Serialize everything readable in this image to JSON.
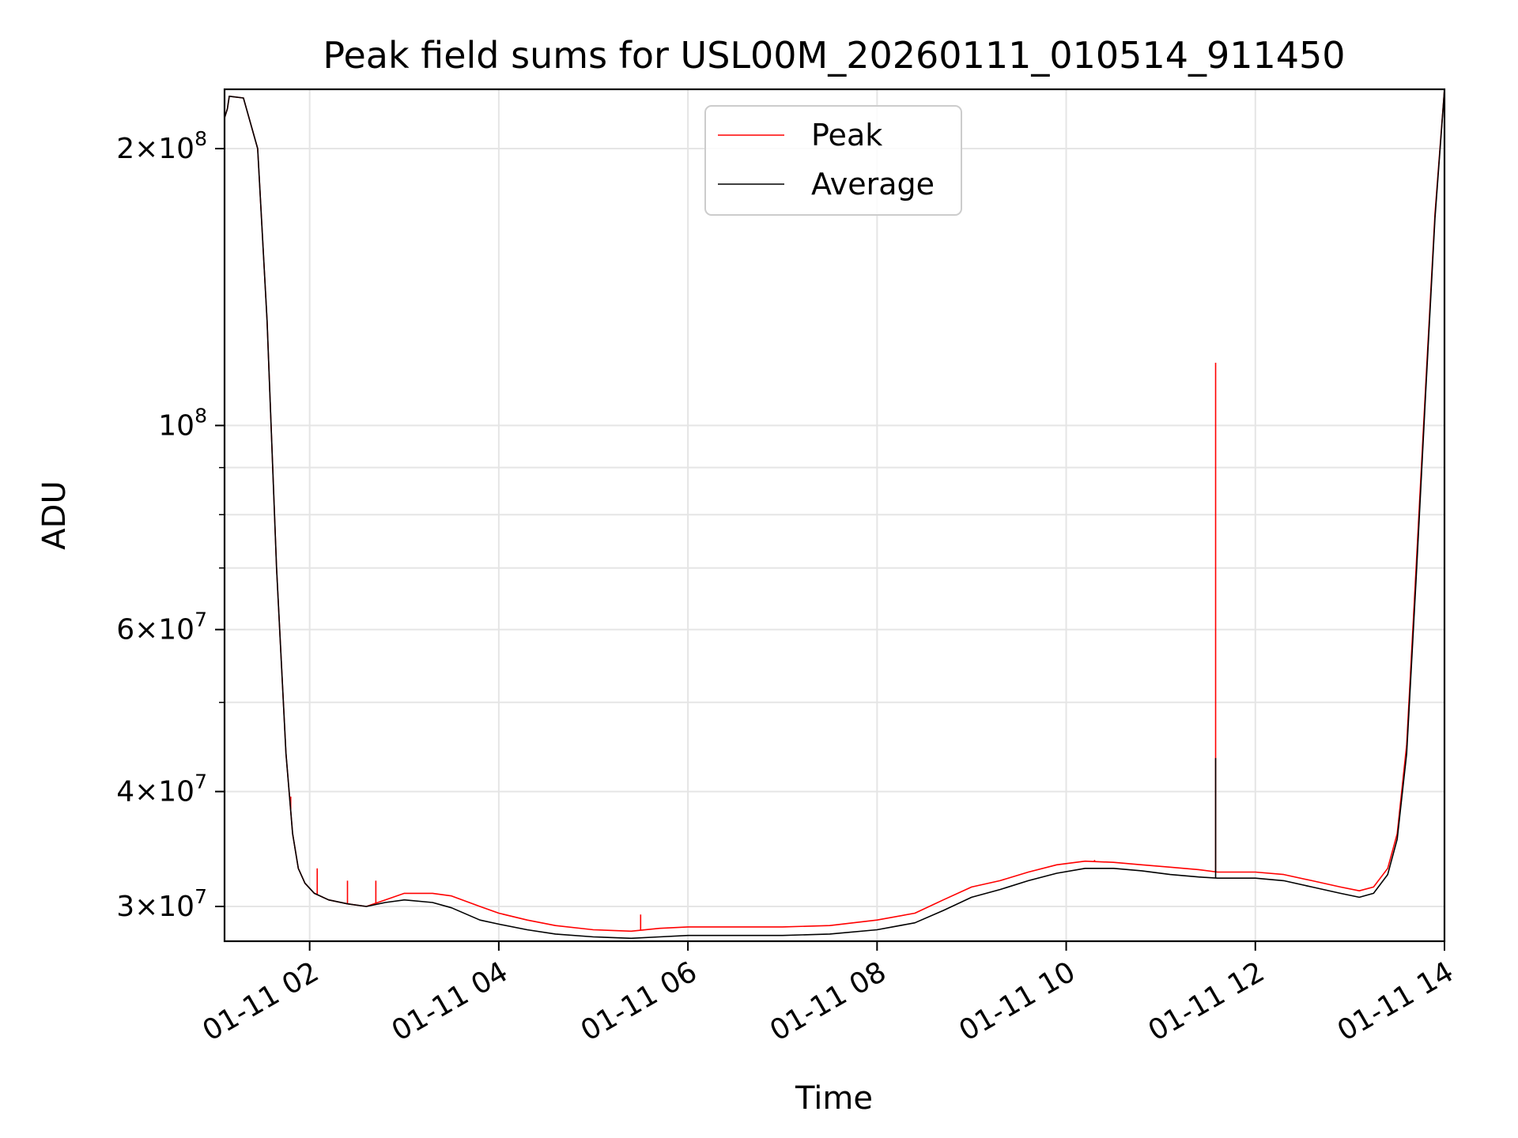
{
  "chart_data": {
    "type": "line",
    "title": "Peak field sums for USL00M_20260111_010514_911450",
    "xlabel": "Time",
    "ylabel": "ADU",
    "yscale": "log",
    "grid": true,
    "legend_position": "upper-center",
    "xlim_hours": [
      1.1,
      14.0
    ],
    "ylim": [
      27500000,
      232000000
    ],
    "x_ticks": [
      {
        "value": 2,
        "label": "01-11 02"
      },
      {
        "value": 4,
        "label": "01-11 04"
      },
      {
        "value": 6,
        "label": "01-11 06"
      },
      {
        "value": 8,
        "label": "01-11 08"
      },
      {
        "value": 10,
        "label": "01-11 10"
      },
      {
        "value": 12,
        "label": "01-11 12"
      },
      {
        "value": 14,
        "label": "01-11 14"
      }
    ],
    "y_ticks": [
      {
        "value": 30000000,
        "mant": "3",
        "exp": "7"
      },
      {
        "value": 40000000,
        "mant": "4",
        "exp": "7"
      },
      {
        "value": 60000000,
        "mant": "6",
        "exp": "7"
      },
      {
        "value": 100000000,
        "mant": "",
        "exp": "8"
      },
      {
        "value": 200000000,
        "mant": "2",
        "exp": "8"
      }
    ],
    "y_minor_ticks": [
      50000000,
      70000000,
      80000000,
      90000000
    ],
    "series": [
      {
        "name": "Peak",
        "color": "#ff0000",
        "x": [
          1.1,
          1.13,
          1.15,
          1.3,
          1.45,
          1.55,
          1.65,
          1.75,
          1.82,
          1.88,
          1.95,
          2.05,
          2.2,
          2.4,
          2.6,
          2.8,
          3.0,
          3.3,
          3.5,
          3.8,
          4.0,
          4.3,
          4.6,
          5.0,
          5.4,
          5.7,
          6.0,
          6.5,
          7.0,
          7.5,
          8.0,
          8.4,
          8.7,
          9.0,
          9.3,
          9.6,
          9.9,
          10.2,
          10.5,
          10.8,
          11.1,
          11.4,
          11.6,
          11.8,
          12.0,
          12.3,
          12.6,
          12.9,
          13.1,
          13.25,
          13.4,
          13.5,
          13.6,
          13.7,
          13.8,
          13.9,
          14.0
        ],
        "values": [
          216000000,
          221000000,
          228000000,
          227000000,
          200000000,
          130000000,
          70000000,
          44000000,
          36000000,
          33000000,
          31800000,
          31000000,
          30500000,
          30200000,
          30000000,
          30500000,
          31000000,
          31000000,
          30800000,
          30000000,
          29500000,
          29000000,
          28600000,
          28300000,
          28200000,
          28400000,
          28500000,
          28500000,
          28500000,
          28600000,
          29000000,
          29500000,
          30500000,
          31500000,
          32000000,
          32700000,
          33300000,
          33600000,
          33500000,
          33300000,
          33100000,
          32900000,
          32700000,
          32700000,
          32700000,
          32500000,
          32000000,
          31500000,
          31200000,
          31500000,
          33000000,
          36000000,
          45000000,
          70000000,
          110000000,
          170000000,
          232000000
        ],
        "spikes": [
          {
            "x": 11.58,
            "value": 117000000
          },
          {
            "x": 1.8,
            "value": 39500000
          },
          {
            "x": 2.08,
            "value": 33000000
          },
          {
            "x": 2.4,
            "value": 32000000
          },
          {
            "x": 2.7,
            "value": 32000000
          },
          {
            "x": 5.5,
            "value": 29400000
          },
          {
            "x": 10.3,
            "value": 33700000
          }
        ]
      },
      {
        "name": "Average",
        "color": "#000000",
        "x": [
          1.1,
          1.13,
          1.15,
          1.3,
          1.45,
          1.55,
          1.65,
          1.75,
          1.82,
          1.88,
          1.95,
          2.05,
          2.2,
          2.4,
          2.6,
          2.8,
          3.0,
          3.3,
          3.5,
          3.8,
          4.0,
          4.3,
          4.6,
          5.0,
          5.4,
          5.7,
          6.0,
          6.5,
          7.0,
          7.5,
          8.0,
          8.4,
          8.7,
          9.0,
          9.3,
          9.6,
          9.9,
          10.2,
          10.5,
          10.8,
          11.1,
          11.4,
          11.6,
          11.8,
          12.0,
          12.3,
          12.6,
          12.9,
          13.1,
          13.25,
          13.4,
          13.5,
          13.6,
          13.7,
          13.8,
          13.9,
          14.0
        ],
        "values": [
          216000000,
          221000000,
          228000000,
          227000000,
          200000000,
          130000000,
          70000000,
          44000000,
          36000000,
          33000000,
          31800000,
          31000000,
          30500000,
          30200000,
          30000000,
          30300000,
          30500000,
          30300000,
          29900000,
          29000000,
          28700000,
          28300000,
          28000000,
          27800000,
          27700000,
          27800000,
          27900000,
          27900000,
          27900000,
          28000000,
          28300000,
          28800000,
          29700000,
          30700000,
          31300000,
          32000000,
          32600000,
          33000000,
          33000000,
          32800000,
          32500000,
          32300000,
          32200000,
          32200000,
          32200000,
          32000000,
          31500000,
          31000000,
          30700000,
          31000000,
          32500000,
          35500000,
          44000000,
          68000000,
          108000000,
          168000000,
          232000000
        ],
        "spikes": [
          {
            "x": 11.58,
            "value": 43500000
          }
        ]
      }
    ]
  }
}
